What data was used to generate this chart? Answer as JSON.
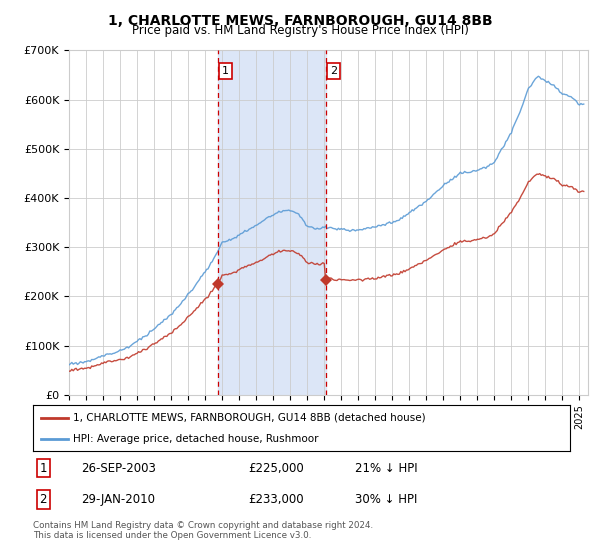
{
  "title": "1, CHARLOTTE MEWS, FARNBOROUGH, GU14 8BB",
  "subtitle": "Price paid vs. HM Land Registry's House Price Index (HPI)",
  "legend_line1": "1, CHARLOTTE MEWS, FARNBOROUGH, GU14 8BB (detached house)",
  "legend_line2": "HPI: Average price, detached house, Rushmoor",
  "transaction1_label": "1",
  "transaction1_date": "26-SEP-2003",
  "transaction1_price": "£225,000",
  "transaction1_hpi": "21% ↓ HPI",
  "transaction1_year": 2003.74,
  "transaction1_value": 225000,
  "transaction2_label": "2",
  "transaction2_date": "29-JAN-2010",
  "transaction2_price": "£233,000",
  "transaction2_hpi": "30% ↓ HPI",
  "transaction2_year": 2010.08,
  "transaction2_value": 233000,
  "footer": "Contains HM Land Registry data © Crown copyright and database right 2024.\nThis data is licensed under the Open Government Licence v3.0.",
  "ylim": [
    0,
    700000
  ],
  "yticks": [
    0,
    100000,
    200000,
    300000,
    400000,
    500000,
    600000,
    700000
  ],
  "ytick_labels": [
    "£0",
    "£100K",
    "£200K",
    "£300K",
    "£400K",
    "£500K",
    "£600K",
    "£700K"
  ],
  "hpi_color": "#5b9bd5",
  "price_color": "#c0392b",
  "plot_bg": "#ffffff",
  "grid_color": "#cccccc",
  "shaded_region_color": "#dce6f7",
  "vline_color": "#cc0000",
  "xlim_start": 1995,
  "xlim_end": 2025.5
}
